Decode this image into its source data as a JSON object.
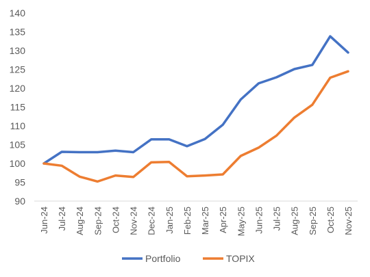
{
  "chart_data": {
    "type": "line",
    "title": "",
    "xlabel": "",
    "ylabel": "",
    "categories": [
      "Jun-24",
      "Jul-24",
      "Aug-24",
      "Sep-24",
      "Oct-24",
      "Nov-24",
      "Dec-24",
      "Jan-25",
      "Feb-25",
      "Mar-25",
      "Apr-25",
      "May-25",
      "Jun-25",
      "Jul-25",
      "Aug-25",
      "Sep-25",
      "Oct-25",
      "Nov-25"
    ],
    "ylim": [
      90,
      140
    ],
    "yticks": [
      90,
      95,
      100,
      105,
      110,
      115,
      120,
      125,
      130,
      135,
      140
    ],
    "grid": false,
    "legend_position": "bottom",
    "series": [
      {
        "name": "Portfolio",
        "color": "#4472C4",
        "values": [
          100.0,
          103.1,
          103.0,
          103.0,
          103.4,
          103.0,
          106.4,
          106.4,
          104.6,
          106.5,
          110.3,
          117.0,
          121.3,
          122.9,
          125.1,
          126.2,
          133.8,
          129.5
        ]
      },
      {
        "name": "TOPIX",
        "color": "#ED7D31",
        "values": [
          100.0,
          99.4,
          96.5,
          95.2,
          96.8,
          96.4,
          100.3,
          100.4,
          96.6,
          96.8,
          97.1,
          102.0,
          104.2,
          107.4,
          112.2,
          115.6,
          122.8,
          124.5
        ]
      }
    ]
  }
}
